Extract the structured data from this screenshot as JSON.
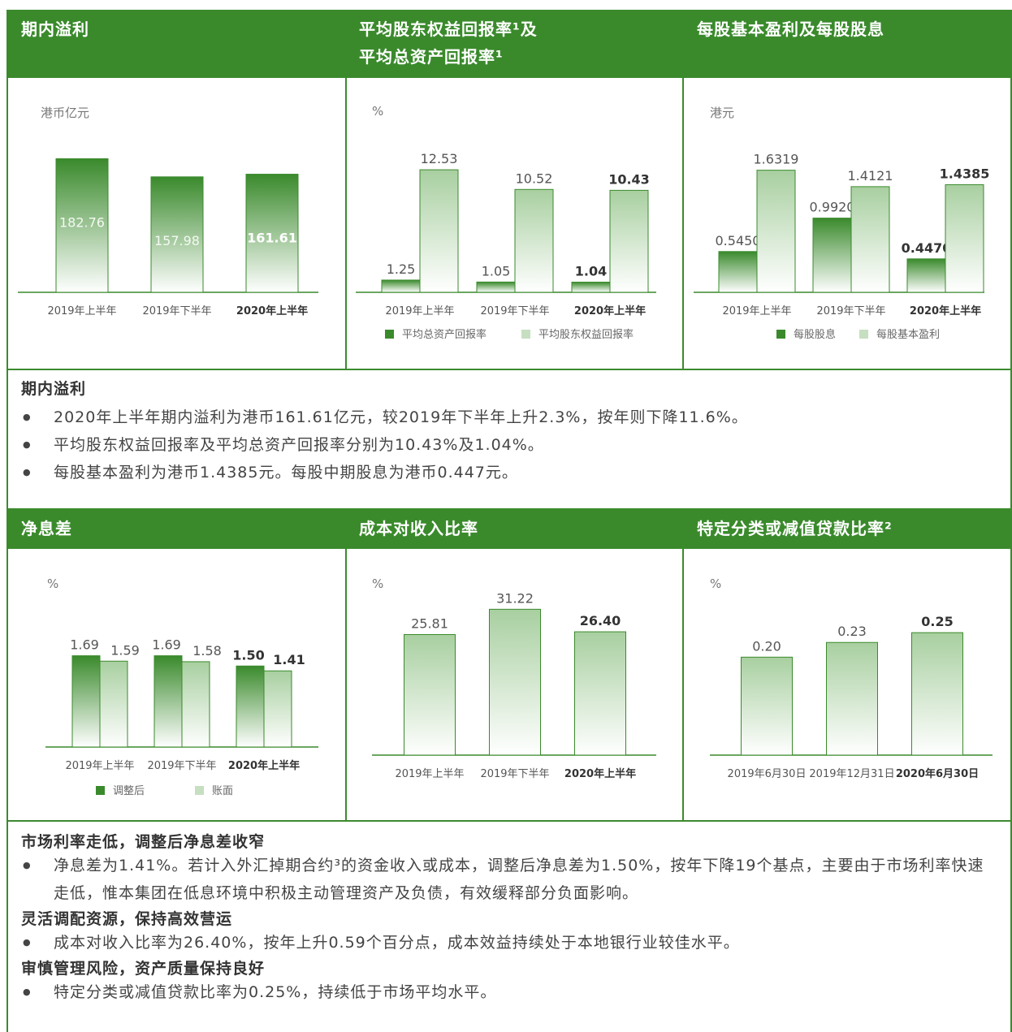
{
  "top": {
    "panels": [
      {
        "title": "期内溢利",
        "unit": "港币亿元"
      },
      {
        "title_line1": "平均股东权益回报率¹及",
        "title_line2": "平均总资产回报率¹",
        "unit": "%"
      },
      {
        "title": "每股基本盈利及每股股息",
        "unit": "港元"
      }
    ]
  },
  "bottom": {
    "panels": [
      {
        "title": "净息差",
        "unit": "%"
      },
      {
        "title": "成本对收入比率",
        "unit": "%"
      },
      {
        "title": "特定分类或减值贷款比率²",
        "unit": "%"
      }
    ]
  },
  "chart_data": [
    {
      "type": "bar",
      "categories": [
        "2019年上半年",
        "2019年下半年",
        "2020年上半年"
      ],
      "values": [
        182.76,
        157.98,
        161.61
      ],
      "value_labels": [
        "182.76",
        "157.98",
        "161.61"
      ],
      "title": "期内溢利",
      "ylabel": "港币亿元",
      "ylim": [
        0,
        200
      ],
      "highlight_index": 2
    },
    {
      "type": "bar",
      "categories": [
        "2019年上半年",
        "2019年下半年",
        "2020年上半年"
      ],
      "series": [
        {
          "name": "平均总资产回报率",
          "values": [
            1.25,
            1.05,
            1.04
          ],
          "labels": [
            "1.25",
            "1.05",
            "1.04"
          ],
          "color": "#3a8a2c"
        },
        {
          "name": "平均股东权益回报率",
          "values": [
            12.53,
            10.52,
            10.43
          ],
          "labels": [
            "12.53",
            "10.52",
            "10.43"
          ],
          "color": "#a8cfa0"
        }
      ],
      "title": "平均股东权益回报率¹及平均总资产回报率¹",
      "ylabel": "%",
      "highlight_index": 2
    },
    {
      "type": "bar",
      "categories": [
        "2019年上半年",
        "2019年下半年",
        "2020年上半年"
      ],
      "series": [
        {
          "name": "每股股息",
          "values": [
            0.545,
            0.992,
            0.447
          ],
          "labels": [
            "0.5450",
            "0.9920",
            "0.4470"
          ],
          "color": "#3a8a2c"
        },
        {
          "name": "每股基本盈利",
          "values": [
            1.6319,
            1.4121,
            1.4385
          ],
          "labels": [
            "1.6319",
            "1.4121",
            "1.4385"
          ],
          "color": "#a8cfa0"
        }
      ],
      "title": "每股基本盈利及每股股息",
      "ylabel": "港元",
      "highlight_index": 2
    },
    {
      "type": "bar",
      "categories": [
        "2019年上半年",
        "2019年下半年",
        "2020年上半年"
      ],
      "series": [
        {
          "name": "调整后",
          "values": [
            1.69,
            1.69,
            1.5
          ],
          "labels": [
            "1.69",
            "1.69",
            "1.50"
          ],
          "color": "#3a8a2c"
        },
        {
          "name": "账面",
          "values": [
            1.59,
            1.58,
            1.41
          ],
          "labels": [
            "1.59",
            "1.58",
            "1.41"
          ],
          "color": "#a8cfa0"
        }
      ],
      "title": "净息差",
      "ylabel": "%",
      "highlight_index": 2
    },
    {
      "type": "bar",
      "categories": [
        "2019年上半年",
        "2019年下半年",
        "2020年上半年"
      ],
      "values": [
        25.81,
        31.22,
        26.4
      ],
      "value_labels": [
        "25.81",
        "31.22",
        "26.40"
      ],
      "title": "成本对收入比率",
      "ylabel": "%",
      "highlight_index": 2
    },
    {
      "type": "bar",
      "categories": [
        "2019年6月30日",
        "2019年12月31日",
        "2020年6月30日"
      ],
      "values": [
        0.2,
        0.23,
        0.25
      ],
      "value_labels": [
        "0.20",
        "0.23",
        "0.25"
      ],
      "title": "特定分类或减值贷款比率²",
      "ylabel": "%",
      "highlight_index": 2
    }
  ],
  "summary1": {
    "title": "期内溢利",
    "items": [
      "2020年上半年期内溢利为港币161.61亿元，较2019年下半年上升2.3%，按年则下降11.6%。",
      "平均股东权益回报率及平均总资产回报率分别为10.43%及1.04%。",
      "每股基本盈利为港币1.4385元。每股中期股息为港币0.447元。"
    ]
  },
  "summary2": {
    "sections": [
      {
        "title": "市场利率走低，调整后净息差收窄",
        "items": [
          "净息差为1.41%。若计入外汇掉期合约³的资金收入或成本，调整后净息差为1.50%，按年下降19个基点，主要由于市场利率快速走低，惟本集团在低息环境中积极主动管理资产及负债，有效缓释部分负面影响。"
        ]
      },
      {
        "title": "灵活调配资源，保持高效营运",
        "items": [
          "成本对收入比率为26.40%，按年上升0.59个百分点，成本效益持续处于本地银行业较佳水平。"
        ]
      },
      {
        "title": "审慎管理风险，资产质量保持良好",
        "items": [
          "特定分类或减值贷款比率为0.25%，持续低于市场平均水平。"
        ]
      }
    ]
  },
  "colors": {
    "brand_green": "#3a8a2c",
    "light_green": "#a8cfa0"
  }
}
